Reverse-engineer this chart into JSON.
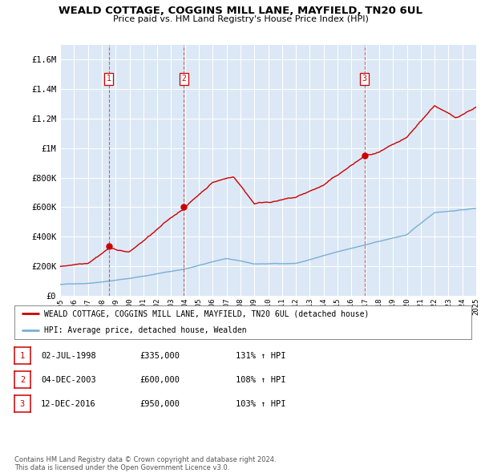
{
  "title": "WEALD COTTAGE, COGGINS MILL LANE, MAYFIELD, TN20 6UL",
  "subtitle": "Price paid vs. HM Land Registry's House Price Index (HPI)",
  "background_color": "#ffffff",
  "plot_bg_color": "#dce8f5",
  "grid_color": "#ffffff",
  "xlim_year": [
    1995,
    2025
  ],
  "ylim": [
    0,
    1700000
  ],
  "yticks": [
    0,
    200000,
    400000,
    600000,
    800000,
    1000000,
    1200000,
    1400000,
    1600000
  ],
  "ytick_labels": [
    "£0",
    "£200K",
    "£400K",
    "£600K",
    "£800K",
    "£1M",
    "£1.2M",
    "£1.4M",
    "£1.6M"
  ],
  "xtick_years": [
    1995,
    1996,
    1997,
    1998,
    1999,
    2000,
    2001,
    2002,
    2003,
    2004,
    2005,
    2006,
    2007,
    2008,
    2009,
    2010,
    2011,
    2012,
    2013,
    2014,
    2015,
    2016,
    2017,
    2018,
    2019,
    2020,
    2021,
    2022,
    2023,
    2024,
    2025
  ],
  "sale_dates_num": [
    1998.5,
    2003.92,
    2016.95
  ],
  "sale_prices": [
    335000,
    600000,
    950000
  ],
  "sale_labels": [
    "1",
    "2",
    "3"
  ],
  "sale_label_color": "#cc0000",
  "sale_vline_color": "#cc0000",
  "legend_line1": "WEALD COTTAGE, COGGINS MILL LANE, MAYFIELD, TN20 6UL (detached house)",
  "legend_line2": "HPI: Average price, detached house, Wealden",
  "table_rows": [
    [
      "1",
      "02-JUL-1998",
      "£335,000",
      "131% ↑ HPI"
    ],
    [
      "2",
      "04-DEC-2003",
      "£600,000",
      "108% ↑ HPI"
    ],
    [
      "3",
      "12-DEC-2016",
      "£950,000",
      "103% ↑ HPI"
    ]
  ],
  "footnote": "Contains HM Land Registry data © Crown copyright and database right 2024.\nThis data is licensed under the Open Government Licence v3.0.",
  "hpi_color": "#7aafd4",
  "price_color": "#cc0000"
}
